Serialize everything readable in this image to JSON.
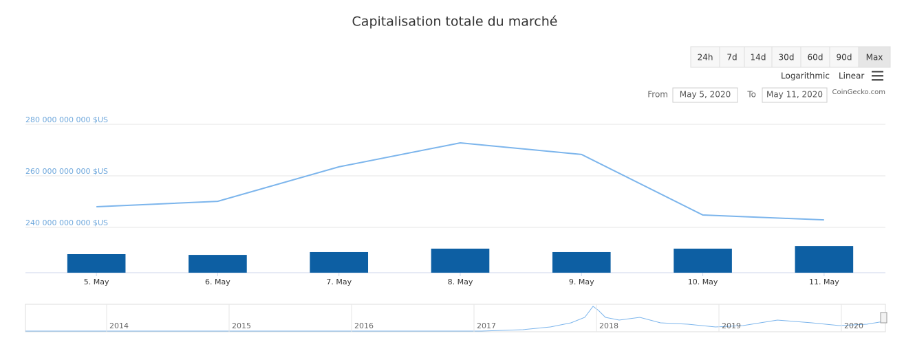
{
  "title": "Capitalisation totale du marché",
  "range_buttons": [
    "24h",
    "7d",
    "14d",
    "30d",
    "60d",
    "90d",
    "Max"
  ],
  "selected_range": 6,
  "scale_options": [
    "Logarithmic",
    "Linear"
  ],
  "from_label": "From",
  "from_value": "May 5, 2020",
  "to_label": "To",
  "to_value": "May 11, 2020",
  "credit": "CoinGecko.com",
  "chart_data": {
    "type": "line",
    "categories": [
      "5. May",
      "6. May",
      "7. May",
      "8. May",
      "9. May",
      "10. May",
      "11. May"
    ],
    "series": [
      {
        "color": "#7cb5ec",
        "values": [
          248000000000,
          250100000000,
          263500000000,
          272800000000,
          268300000000,
          244800000000,
          242900000000
        ]
      },
      {
        "type": "bar",
        "axis": "y2",
        "color": "#0d5fa3",
        "values": [
          12.5,
          12,
          13.9,
          16.2,
          13.9,
          16.2,
          18
        ]
      }
    ],
    "ylim": [
      222400000000,
      280000000000
    ],
    "yticks": [
      {
        "value": 240000000000,
        "label": "240 000 000 000 $US"
      },
      {
        "value": 260000000000,
        "label": "260 000 000 000 $US"
      },
      {
        "value": 280000000000,
        "label": "280 000 000 000 $US"
      }
    ],
    "y2lim": [
      0,
      100
    ],
    "grid": true,
    "navigator_ticks": [
      "2014",
      "2015",
      "2016",
      "2017",
      "2018",
      "2019",
      "2020"
    ]
  }
}
